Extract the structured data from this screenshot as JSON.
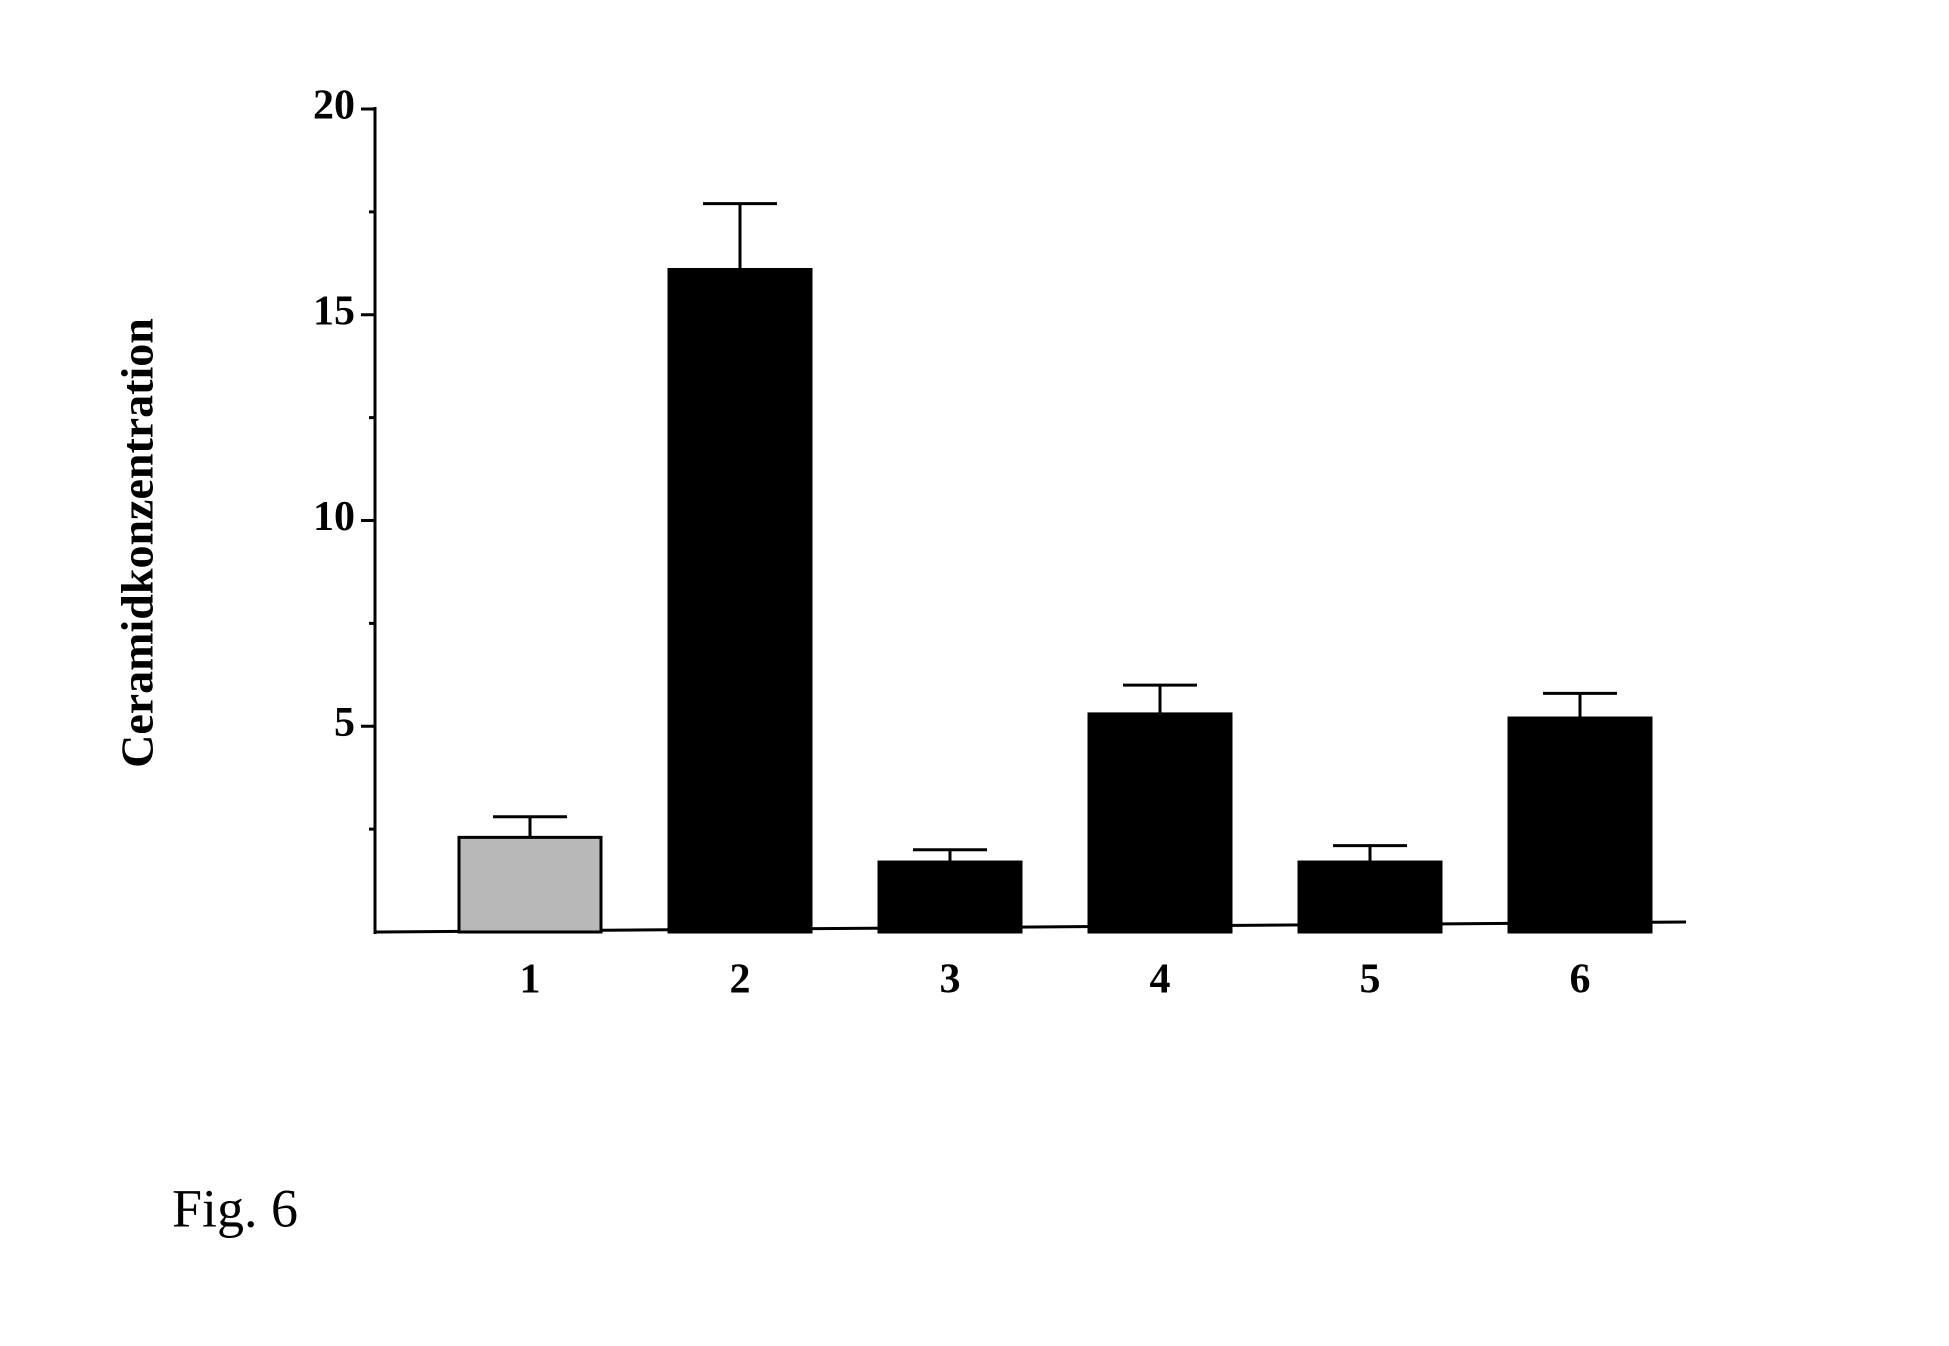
{
  "chart_data": {
    "type": "bar",
    "ylabel": "Ceramidkonzentration",
    "caption": "Fig. 6",
    "categories": [
      "1",
      "2",
      "3",
      "4",
      "5",
      "6"
    ],
    "values": [
      2.3,
      16.1,
      1.7,
      5.3,
      1.7,
      5.2
    ],
    "errors": [
      0.5,
      1.6,
      0.3,
      0.7,
      0.4,
      0.6
    ],
    "colors": [
      "#b8b8b8",
      "#000000",
      "#000000",
      "#000000",
      "#000000",
      "#000000"
    ],
    "ylim": [
      0,
      20
    ],
    "yticks": [
      5,
      10,
      15,
      20
    ],
    "minor_yticks": [
      2.5,
      7.5,
      12.5,
      17.5
    ],
    "grid": false
  }
}
